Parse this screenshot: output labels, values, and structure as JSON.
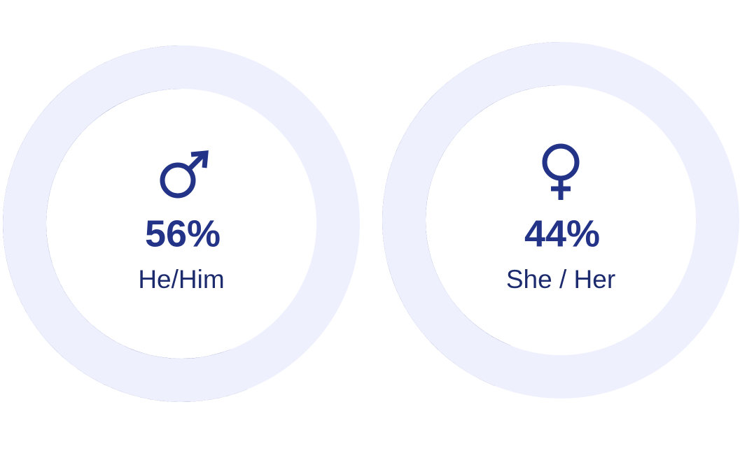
{
  "chart_data": [
    {
      "type": "donut",
      "categories": [
        "He/Him"
      ],
      "values": [
        56
      ],
      "value_labels": [
        "56%"
      ],
      "color": "#233387",
      "track_color": "#eef1fd"
    },
    {
      "type": "donut",
      "categories": [
        "She / Her"
      ],
      "values": [
        44
      ],
      "value_labels": [
        "44%"
      ],
      "color": "#233387",
      "track_color": "#eef1fd"
    }
  ]
}
